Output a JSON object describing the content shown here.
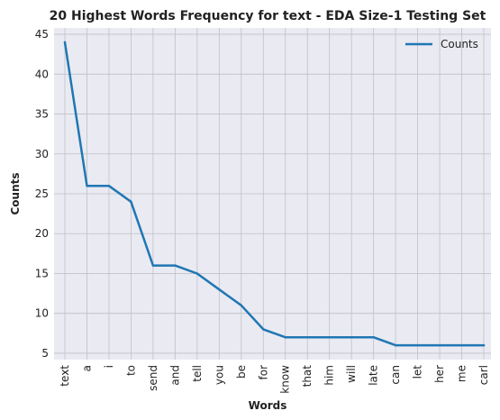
{
  "chart_data": {
    "type": "line",
    "title": "20 Highest Words Frequency for text - EDA Size-1 Testing Set",
    "xlabel": "Words",
    "ylabel": "Counts",
    "categories": [
      "text",
      "a",
      "i",
      "to",
      "send",
      "and",
      "tell",
      "you",
      "be",
      "for",
      "know",
      "that",
      "him",
      "will",
      "late",
      "can",
      "let",
      "her",
      "me",
      "carl"
    ],
    "series": [
      {
        "name": "Counts",
        "values": [
          44,
          26,
          26,
          24,
          16,
          16,
          15,
          13,
          11,
          8,
          7,
          7,
          7,
          7,
          7,
          6,
          6,
          6,
          6,
          6
        ]
      }
    ],
    "ylim": [
      4.2,
      45.8
    ],
    "yticks": [
      5,
      10,
      15,
      20,
      25,
      30,
      35,
      40,
      45
    ],
    "grid": true,
    "legend_position": "top-right",
    "colors": {
      "line": "#1f77b4",
      "plot_background": "#eaeaf2",
      "grid": "#c0c0c8"
    }
  }
}
